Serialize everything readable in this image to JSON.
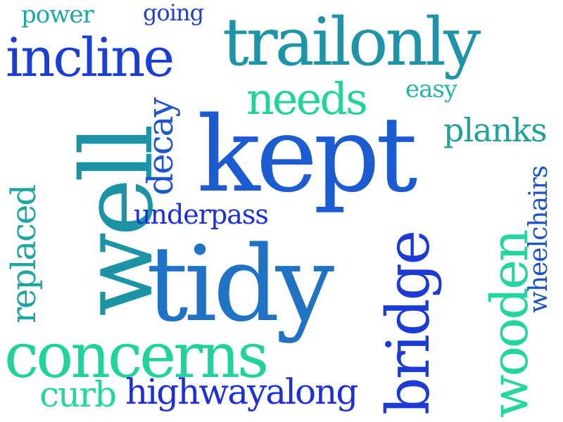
{
  "words": {
    "power": {
      "text": "power",
      "color": "#1aa7a7"
    },
    "going": {
      "text": "going",
      "color": "#1f3fcf"
    },
    "trailonly": {
      "text": "trailonly",
      "color": "#1e94a8"
    },
    "incline": {
      "text": "incline",
      "color": "#1a3fd6"
    },
    "needs": {
      "text": "needs",
      "color": "#22d39a"
    },
    "easy": {
      "text": "easy",
      "color": "#23b6a8"
    },
    "planks": {
      "text": "planks",
      "color": "#1fa19a"
    },
    "well": {
      "text": "well",
      "color": "#1d93a6"
    },
    "decay": {
      "text": "decay",
      "color": "#1f56cf"
    },
    "kept": {
      "text": "kept",
      "color": "#1d5bd3"
    },
    "replaced": {
      "text": "replaced",
      "color": "#1ea7a0"
    },
    "underpass": {
      "text": "underpass",
      "color": "#1c2fdb"
    },
    "tidy": {
      "text": "tidy",
      "color": "#1f72c4"
    },
    "wooden": {
      "text": "wooden",
      "color": "#23d6a0"
    },
    "wheelchairs": {
      "text": "wheelchairs",
      "color": "#1d53c9"
    },
    "bridge": {
      "text": "bridge",
      "color": "#1c3ad6"
    },
    "concerns": {
      "text": "concerns",
      "color": "#1fd39a"
    },
    "curb": {
      "text": "curb",
      "color": "#25d79f"
    },
    "highwayalong": {
      "text": "highwayalong",
      "color": "#1d2fd8"
    }
  }
}
